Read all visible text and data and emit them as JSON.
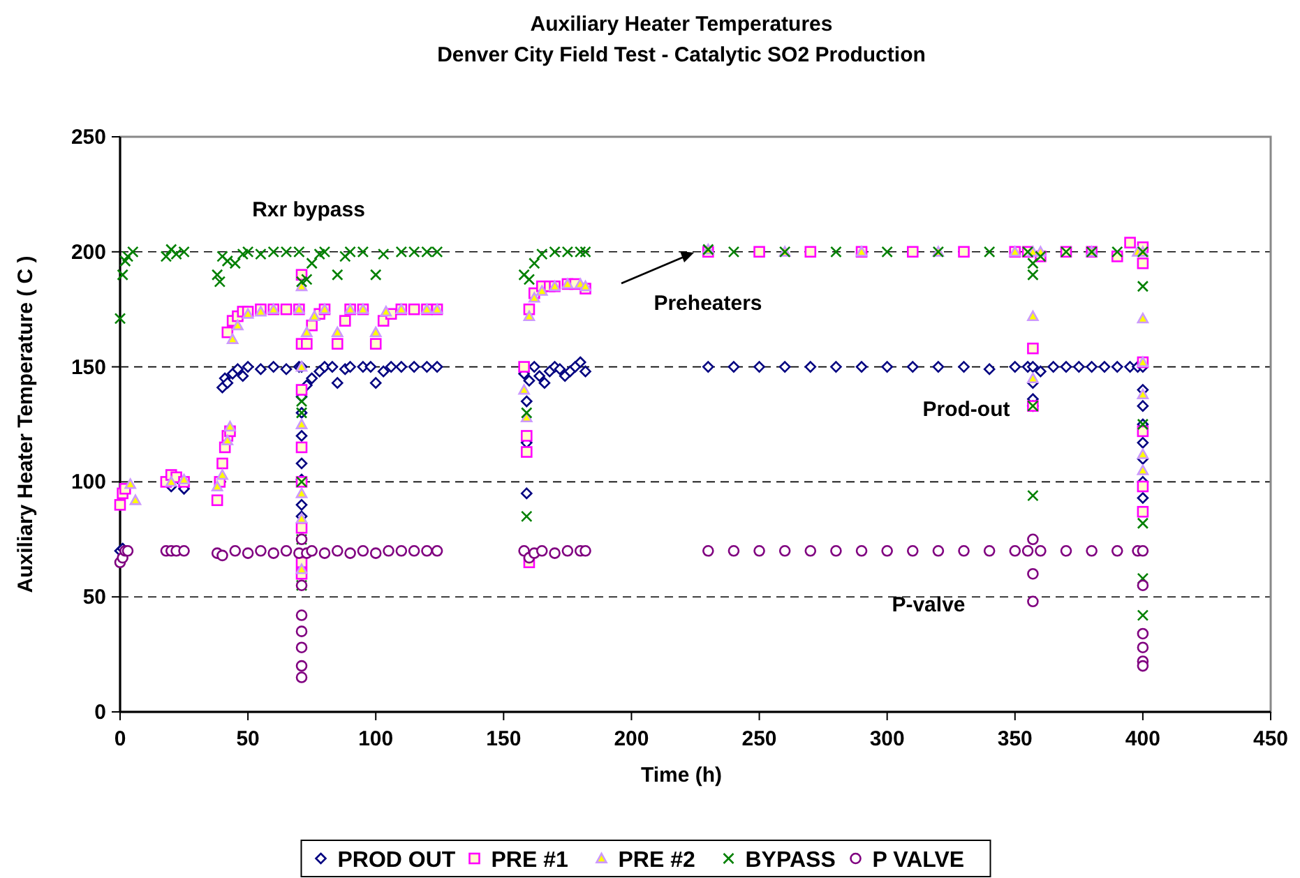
{
  "chart_data": {
    "type": "scatter",
    "title": "Auxiliary Heater Temperatures",
    "subtitle": "Denver City Field Test - Catalytic SO2 Production",
    "xlabel": "Time (h)",
    "ylabel": "Auxiliary Heater Temperature ( C )",
    "xlim": [
      0,
      450
    ],
    "xticks": [
      0,
      50,
      100,
      150,
      200,
      250,
      300,
      350,
      400,
      450
    ],
    "ylim": [
      0,
      250
    ],
    "yticks": [
      0,
      50,
      100,
      150,
      200,
      250
    ],
    "grid": "y",
    "legend": "bottom",
    "annotations": [
      "Rxr bypass",
      "Preheaters",
      "Prod-out",
      "P-valve"
    ],
    "series": [
      {
        "name": "PROD OUT",
        "color": "#000080",
        "marker": "diamond",
        "x": [
          0,
          1,
          20,
          24,
          25,
          40,
          41,
          42,
          44,
          46,
          48,
          50,
          55,
          60,
          65,
          70,
          71,
          71,
          71,
          71,
          71,
          71,
          71,
          71,
          73,
          75,
          78,
          80,
          83,
          85,
          88,
          90,
          95,
          98,
          100,
          103,
          106,
          110,
          115,
          120,
          124,
          158,
          159,
          159,
          159,
          160,
          162,
          164,
          166,
          168,
          170,
          172,
          174,
          176,
          178,
          180,
          182,
          230,
          240,
          250,
          260,
          270,
          280,
          290,
          300,
          310,
          320,
          330,
          340,
          350,
          355,
          357,
          357,
          357,
          357,
          360,
          365,
          370,
          375,
          380,
          385,
          390,
          395,
          398,
          400,
          400,
          400,
          400,
          400,
          400,
          400,
          400
        ],
        "values": [
          70,
          71,
          98,
          100,
          97,
          141,
          145,
          143,
          147,
          149,
          146,
          150,
          149,
          150,
          149,
          150,
          150,
          137,
          130,
          120,
          108,
          101,
          90,
          85,
          142,
          145,
          148,
          150,
          150,
          143,
          149,
          150,
          150,
          150,
          143,
          148,
          150,
          150,
          150,
          150,
          150,
          147,
          95,
          117,
          135,
          144,
          150,
          146,
          143,
          148,
          150,
          149,
          146,
          148,
          150,
          152,
          148,
          150,
          150,
          150,
          150,
          150,
          150,
          150,
          150,
          150,
          150,
          150,
          149,
          150,
          150,
          150,
          143,
          136,
          133,
          148,
          150,
          150,
          150,
          150,
          150,
          150,
          150,
          150,
          150,
          140,
          133,
          125,
          117,
          110,
          100,
          93
        ]
      },
      {
        "name": "PRE #1",
        "color": "#ff00ff",
        "marker": "square",
        "x": [
          0,
          1,
          2,
          18,
          20,
          22,
          25,
          38,
          39,
          40,
          41,
          42,
          43,
          42,
          44,
          46,
          48,
          50,
          55,
          60,
          65,
          70,
          71,
          71,
          71,
          71,
          71,
          71,
          71,
          71,
          73,
          75,
          78,
          80,
          85,
          88,
          90,
          95,
          100,
          103,
          106,
          110,
          115,
          120,
          124,
          158,
          159,
          159,
          160,
          162,
          165,
          168,
          170,
          175,
          178,
          182,
          160,
          230,
          250,
          270,
          290,
          310,
          330,
          350,
          355,
          357,
          357,
          360,
          370,
          380,
          390,
          395,
          400,
          400,
          400,
          400,
          400,
          400
        ],
        "values": [
          90,
          95,
          97,
          100,
          103,
          102,
          100,
          92,
          100,
          108,
          115,
          120,
          122,
          165,
          170,
          172,
          174,
          174,
          175,
          175,
          175,
          175,
          190,
          160,
          140,
          115,
          100,
          80,
          65,
          60,
          160,
          168,
          173,
          175,
          160,
          170,
          175,
          175,
          160,
          170,
          173,
          175,
          175,
          175,
          175,
          150,
          113,
          120,
          175,
          182,
          185,
          185,
          185,
          186,
          186,
          184,
          65,
          200,
          200,
          200,
          200,
          200,
          200,
          200,
          200,
          158,
          133,
          198,
          200,
          200,
          198,
          204,
          202,
          195,
          152,
          122,
          98,
          87
        ]
      },
      {
        "name": "PRE #2",
        "color": "#cc99ff",
        "marker": "triangle",
        "x": [
          6,
          4,
          20,
          25,
          38,
          40,
          42,
          43,
          44,
          46,
          50,
          55,
          60,
          70,
          71,
          71,
          71,
          71,
          71,
          71,
          73,
          76,
          80,
          85,
          90,
          95,
          100,
          104,
          110,
          120,
          124,
          158,
          159,
          160,
          162,
          165,
          170,
          175,
          180,
          182,
          230,
          260,
          290,
          320,
          350,
          357,
          357,
          357,
          360,
          380,
          398,
          400,
          400,
          400,
          400,
          400,
          400
        ],
        "values": [
          92,
          99,
          100,
          101,
          98,
          103,
          118,
          124,
          162,
          168,
          173,
          174,
          175,
          175,
          185,
          150,
          125,
          95,
          84,
          62,
          165,
          172,
          175,
          165,
          175,
          175,
          165,
          174,
          175,
          175,
          175,
          140,
          128,
          172,
          180,
          183,
          185,
          186,
          186,
          185,
          201,
          200,
          200,
          200,
          200,
          200,
          172,
          145,
          200,
          200,
          200,
          200,
          171,
          152,
          138,
          112,
          105
        ]
      },
      {
        "name": "BYPASS",
        "color": "#008000",
        "marker": "cross",
        "x": [
          0,
          1,
          2,
          3,
          5,
          18,
          20,
          22,
          25,
          38,
          39,
          40,
          42,
          45,
          48,
          50,
          55,
          60,
          65,
          70,
          71,
          71,
          71,
          71,
          71,
          71,
          73,
          75,
          78,
          80,
          85,
          88,
          90,
          95,
          100,
          103,
          110,
          115,
          120,
          124,
          158,
          159,
          159,
          160,
          162,
          165,
          170,
          175,
          180,
          182,
          230,
          240,
          260,
          280,
          300,
          320,
          340,
          355,
          357,
          357,
          357,
          357,
          360,
          370,
          380,
          390,
          400,
          400,
          400,
          400,
          400,
          400
        ],
        "values": [
          171,
          190,
          196,
          198,
          200,
          198,
          201,
          199,
          200,
          190,
          187,
          198,
          196,
          195,
          199,
          200,
          199,
          200,
          200,
          200,
          187,
          135,
          130,
          100,
          75,
          55,
          188,
          195,
          199,
          200,
          190,
          198,
          200,
          200,
          190,
          199,
          200,
          200,
          200,
          200,
          190,
          130,
          85,
          188,
          195,
          199,
          200,
          200,
          200,
          200,
          201,
          200,
          200,
          200,
          200,
          200,
          200,
          200,
          195,
          190,
          133,
          94,
          198,
          200,
          200,
          200,
          200,
          185,
          125,
          82,
          58,
          42
        ]
      },
      {
        "name": "P VALVE",
        "color": "#800080",
        "marker": "circle",
        "x": [
          0,
          1,
          2,
          3,
          18,
          20,
          22,
          25,
          38,
          40,
          45,
          50,
          55,
          60,
          65,
          70,
          71,
          71,
          71,
          71,
          71,
          71,
          71,
          73,
          75,
          80,
          85,
          90,
          95,
          100,
          105,
          110,
          115,
          120,
          124,
          158,
          160,
          162,
          165,
          170,
          175,
          180,
          182,
          230,
          240,
          250,
          260,
          270,
          280,
          290,
          300,
          310,
          320,
          330,
          340,
          350,
          355,
          357,
          357,
          357,
          360,
          370,
          380,
          390,
          398,
          400,
          400,
          400,
          400,
          400,
          400
        ],
        "values": [
          65,
          67,
          70,
          70,
          70,
          70,
          70,
          70,
          69,
          68,
          70,
          69,
          70,
          69,
          70,
          69,
          75,
          55,
          42,
          35,
          28,
          20,
          15,
          69,
          70,
          69,
          70,
          69,
          70,
          69,
          70,
          70,
          70,
          70,
          70,
          70,
          67,
          69,
          70,
          69,
          70,
          70,
          70,
          70,
          70,
          70,
          70,
          70,
          70,
          70,
          70,
          70,
          70,
          70,
          70,
          70,
          70,
          75,
          60,
          48,
          70,
          70,
          70,
          70,
          70,
          70,
          55,
          34,
          28,
          22,
          20
        ]
      }
    ]
  }
}
